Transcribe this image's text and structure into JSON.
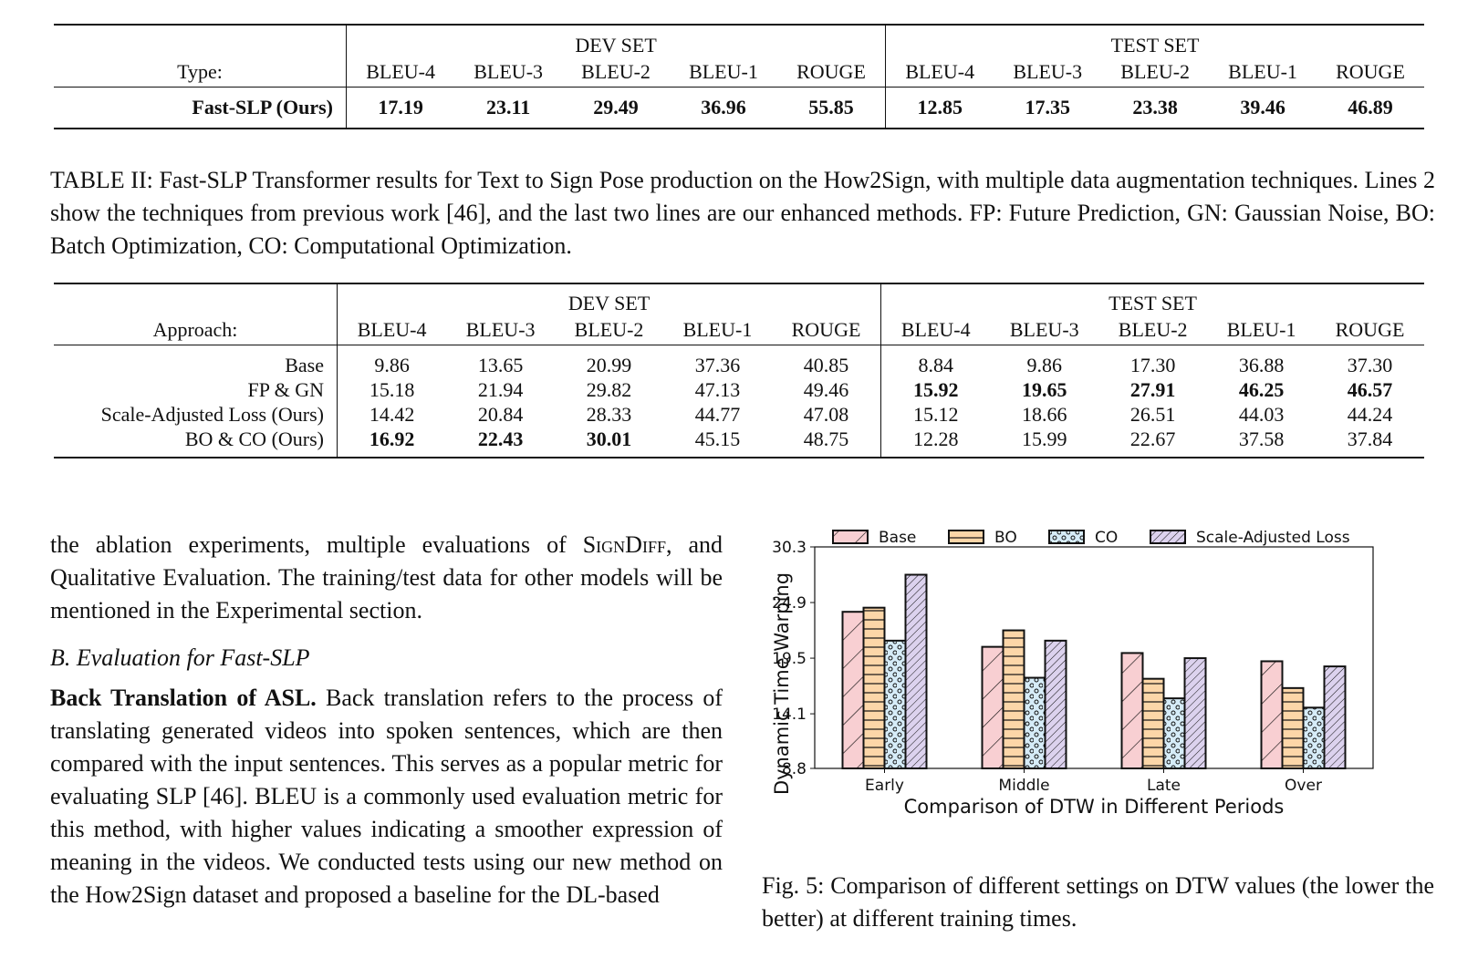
{
  "table1": {
    "dev_label": "DEV SET",
    "test_label": "TEST SET",
    "type_label": "Type:",
    "columns": [
      "BLEU-4",
      "BLEU-3",
      "BLEU-2",
      "BLEU-1",
      "ROUGE",
      "BLEU-4",
      "BLEU-3",
      "BLEU-2",
      "BLEU-1",
      "ROUGE"
    ],
    "row": {
      "name": "Fast-SLP (Ours)",
      "values": [
        "17.19",
        "23.11",
        "29.49",
        "36.96",
        "55.85",
        "12.85",
        "17.35",
        "23.38",
        "39.46",
        "46.89"
      ]
    }
  },
  "table2_caption": "TABLE II: Fast-SLP Transformer results for Text to Sign Pose production on the How2Sign, with multiple data augmentation techniques. Lines 2 show the techniques from previous work [46], and the last two lines are our enhanced methods. FP: Future Prediction, GN: Gaussian Noise, BO: Batch Optimization, CO: Computational Optimization.",
  "table2": {
    "dev_label": "DEV SET",
    "test_label": "TEST SET",
    "approach_label": "Approach:",
    "columns": [
      "BLEU-4",
      "BLEU-3",
      "BLEU-2",
      "BLEU-1",
      "ROUGE",
      "BLEU-4",
      "BLEU-3",
      "BLEU-2",
      "BLEU-1",
      "ROUGE"
    ],
    "rows": [
      {
        "name": "Base",
        "values": [
          "9.86",
          "13.65",
          "20.99",
          "37.36",
          "40.85",
          "8.84",
          "9.86",
          "17.30",
          "36.88",
          "37.30"
        ]
      },
      {
        "name": "FP & GN",
        "values": [
          "15.18",
          "21.94",
          "29.82",
          "47.13",
          "49.46",
          "15.92",
          "19.65",
          "27.91",
          "46.25",
          "46.57"
        ]
      },
      {
        "name": "Scale-Adjusted Loss (Ours)",
        "values": [
          "14.42",
          "20.84",
          "28.33",
          "44.77",
          "47.08",
          "15.12",
          "18.66",
          "26.51",
          "44.03",
          "44.24"
        ]
      },
      {
        "name": "BO & CO (Ours)",
        "values": [
          "16.92",
          "22.43",
          "30.01",
          "45.15",
          "48.75",
          "12.28",
          "15.99",
          "22.67",
          "37.58",
          "37.84"
        ]
      }
    ]
  },
  "body": {
    "para1_a": "the ablation experiments, multiple evaluations of ",
    "para1_sc": "SignDiff",
    "para1_b": ", and Qualitative Evaluation. The training/test data for other models will be mentioned in the Experimental section.",
    "section_b": "B.  Evaluation for Fast-SLP",
    "para2_bold": "Back Translation of ASL.",
    "para2": " Back translation refers to the process of translating generated videos into spoken sentences, which are then compared with the input sentences. This serves as a popular metric for evaluating SLP [46]. BLEU is a commonly used evaluation metric for this method, with higher values indicating a smoother expression of meaning in the videos. We conducted tests using our new method on the How2Sign dataset and proposed a baseline for the DL-based"
  },
  "figure_caption": "Fig. 5: Comparison of different settings on DTW values (the lower the better) at different training times.",
  "chart_data": {
    "type": "bar",
    "title": "",
    "xlabel": "Comparison of DTW in Different Periods",
    "ylabel": "Dynamic Time Warping",
    "categories": [
      "Early",
      "Middle",
      "Late",
      "Over"
    ],
    "yticks": [
      "8.8",
      "14.1",
      "19.5",
      "24.9",
      "30.3"
    ],
    "ylim": [
      8.8,
      30.3
    ],
    "legend_position": "top",
    "series": [
      {
        "name": "Base",
        "values": [
          24.0,
          20.6,
          20.0,
          19.2
        ],
        "color": "#f8cfd2",
        "hatch": "slash"
      },
      {
        "name": "BO",
        "values": [
          24.4,
          22.2,
          17.5,
          16.6
        ],
        "color": "#fcd6a8",
        "hatch": "hlines"
      },
      {
        "name": "CO",
        "values": [
          21.2,
          17.6,
          15.6,
          14.7
        ],
        "color": "#d6ecf8",
        "hatch": "dots"
      },
      {
        "name": "Scale-Adjusted Loss",
        "values": [
          27.6,
          21.2,
          19.5,
          18.7
        ],
        "color": "#dcd2ee",
        "hatch": "dense-slash"
      }
    ]
  }
}
